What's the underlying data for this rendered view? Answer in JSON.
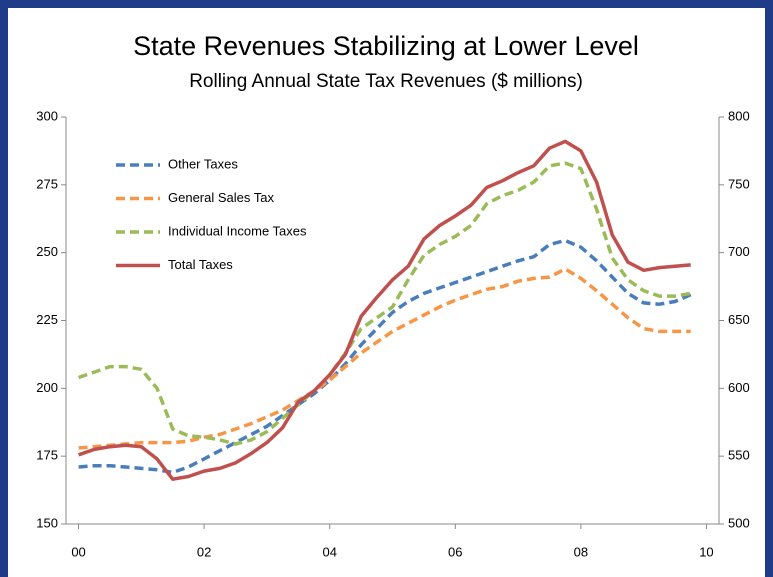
{
  "chart_data": {
    "type": "line",
    "title": "State Revenues Stabilizing at Lower Level",
    "subtitle": "Rolling Annual State Tax Revenues ($ millions)",
    "x": [
      0,
      0.25,
      0.5,
      0.75,
      1,
      1.25,
      1.5,
      1.75,
      2,
      2.25,
      2.5,
      2.75,
      3,
      3.25,
      3.5,
      3.75,
      4,
      4.25,
      4.5,
      4.75,
      5,
      5.25,
      5.5,
      5.75,
      6,
      6.25,
      6.5,
      6.75,
      7,
      7.25,
      7.5,
      7.75,
      8,
      8.25,
      8.5,
      8.75,
      9,
      9.25,
      9.5,
      9.75
    ],
    "series": [
      {
        "name": "Other Taxes",
        "color": "#4a7ebb",
        "style": "dashed",
        "values": [
          171,
          171.5,
          171.5,
          171,
          170.5,
          170,
          169,
          171,
          174,
          177,
          180,
          183,
          186,
          190,
          194,
          198,
          203,
          209,
          216,
          222,
          228,
          232,
          235,
          237,
          239,
          241,
          243,
          245,
          247,
          248.5,
          253,
          254.5,
          252,
          247,
          241,
          235,
          231.5,
          231,
          232,
          234.5
        ]
      },
      {
        "name": "General Sales Tax",
        "color": "#f79646",
        "style": "dashed",
        "values": [
          178,
          178.5,
          179,
          179.5,
          180,
          180,
          180,
          180.5,
          182,
          183,
          185,
          187,
          189.5,
          192,
          195.5,
          199,
          203,
          208,
          213,
          217,
          221,
          224,
          227,
          230,
          232.5,
          234.5,
          236.5,
          237.5,
          239.5,
          240.5,
          241,
          244,
          240.5,
          236,
          231,
          226,
          222,
          221,
          221,
          221
        ]
      },
      {
        "name": "Individual Income Taxes",
        "color": "#9bbb59",
        "style": "dashed",
        "values": [
          204,
          206,
          208,
          208,
          207,
          200,
          185,
          182.5,
          182,
          181,
          179.5,
          181,
          184,
          189,
          194,
          199,
          205,
          213,
          222,
          226,
          230,
          240,
          249,
          253,
          256,
          260,
          268,
          271,
          273,
          276,
          282,
          283,
          281,
          266,
          248,
          240,
          236,
          234,
          234,
          235
        ]
      },
      {
        "name": "Total Taxes",
        "color": "#c0504d",
        "style": "solid",
        "axis": "y2",
        "values": [
          551,
          555,
          557,
          558,
          557,
          548,
          533,
          535,
          539,
          541,
          545,
          552,
          560,
          571,
          590,
          598,
          610,
          625,
          653,
          667,
          680,
          690,
          710,
          720,
          727,
          735,
          748,
          753,
          759,
          764,
          777,
          782,
          775,
          752,
          713,
          693,
          687,
          689,
          690,
          691
        ]
      }
    ],
    "xlim": [
      -0.2,
      10.2
    ],
    "xticks": [
      {
        "value": 0,
        "label": "00"
      },
      {
        "value": 2,
        "label": "02"
      },
      {
        "value": 4,
        "label": "04"
      },
      {
        "value": 6,
        "label": "06"
      },
      {
        "value": 8,
        "label": "08"
      },
      {
        "value": 10,
        "label": "10"
      }
    ],
    "ylim": [
      150,
      300
    ],
    "yticks": [
      150,
      175,
      200,
      225,
      250,
      275,
      300
    ],
    "y2lim": [
      500,
      800
    ],
    "y2ticks": [
      500,
      550,
      600,
      650,
      700,
      750,
      800
    ],
    "grid": false,
    "legend": "upper left"
  }
}
